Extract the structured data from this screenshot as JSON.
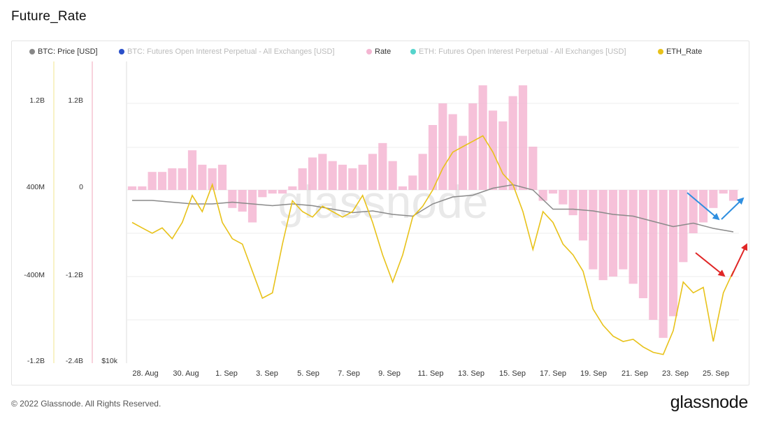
{
  "page": {
    "title": "Future_Rate",
    "copyright": "© 2022 Glassnode. All Rights Reserved.",
    "brand": "glassnode",
    "watermark": "glassnode"
  },
  "legend": [
    {
      "label": "BTC: Price [USD]",
      "color": "#888888",
      "dim": false
    },
    {
      "label": "BTC: Futures Open Interest Perpetual - All Exchanges [USD]",
      "color": "#2a4fc9",
      "dim": true
    },
    {
      "label": "Rate",
      "color": "#f4b6d2",
      "dim": false
    },
    {
      "label": "ETH: Futures Open Interest Perpetual - All Exchanges [USD]",
      "color": "#55d4cc",
      "dim": true
    },
    {
      "label": "ETH_Rate",
      "color": "#e8c21a",
      "dim": false
    }
  ],
  "axes": {
    "eth_axis_ticks": [
      "1.2B",
      "400M",
      "-400M",
      "-1.2B"
    ],
    "rate_axis_ticks": [
      "1.2B",
      "0",
      "-1.2B",
      "-2.4B"
    ],
    "price_axis_ticks": [
      "$10k"
    ],
    "x_ticks": [
      "28. Aug",
      "30. Aug",
      "1. Sep",
      "3. Sep",
      "5. Sep",
      "7. Sep",
      "9. Sep",
      "11. Sep",
      "13. Sep",
      "15. Sep",
      "17. Sep",
      "19. Sep",
      "21. Sep",
      "23. Sep",
      "25. Sep"
    ],
    "eth_axis_color": "#f3e9a0",
    "rate_axis_color": "#f3b6c6"
  },
  "chart_data": {
    "type": "line",
    "x_range": [
      "27. Aug",
      "26. Sep"
    ],
    "rate_ylim": [
      -2.4,
      1.6
    ],
    "eth_rate_ylim": [
      -1.2,
      1.6
    ],
    "series": [
      {
        "name": "Rate",
        "kind": "bar",
        "unit": "B",
        "color": "#f4b6d2",
        "t": [
          0,
          0.5,
          1,
          1.5,
          2,
          2.5,
          3,
          3.5,
          4,
          4.5,
          5,
          5.5,
          6,
          6.5,
          7,
          7.5,
          8,
          8.5,
          9,
          9.5,
          10,
          10.5,
          11,
          11.5,
          12,
          12.5,
          13,
          13.5,
          14,
          14.5,
          15,
          15.5,
          16,
          16.5,
          17,
          17.5,
          18,
          18.5,
          19,
          19.5,
          20,
          20.5,
          21,
          21.5,
          22,
          22.5,
          23,
          23.5,
          24,
          24.5,
          25,
          25.5,
          26,
          26.5,
          27,
          27.5,
          28,
          28.5,
          29,
          29.5,
          30
        ],
        "v": [
          0.05,
          0.05,
          0.25,
          0.25,
          0.3,
          0.3,
          0.55,
          0.35,
          0.3,
          0.35,
          -0.25,
          -0.3,
          -0.45,
          -0.1,
          -0.05,
          -0.05,
          0.05,
          0.3,
          0.45,
          0.5,
          0.4,
          0.35,
          0.3,
          0.35,
          0.5,
          0.65,
          0.4,
          0.05,
          0.2,
          0.5,
          0.9,
          1.2,
          1.05,
          0.75,
          1.2,
          1.45,
          1.1,
          0.95,
          1.3,
          1.45,
          0.6,
          -0.15,
          -0.05,
          -0.2,
          -0.35,
          -0.7,
          -1.1,
          -1.25,
          -1.2,
          -1.1,
          -1.3,
          -1.5,
          -1.8,
          -2.05,
          -1.75,
          -1.0,
          -0.6,
          -0.45,
          -0.25,
          -0.05,
          -0.15
        ]
      },
      {
        "name": "ETH_Rate",
        "kind": "line",
        "unit": "B",
        "color": "#e8c21a",
        "t": [
          0,
          0.5,
          1,
          1.5,
          2,
          2.5,
          3,
          3.5,
          4,
          4.5,
          5,
          5.5,
          6,
          6.5,
          7,
          7.5,
          8,
          8.5,
          9,
          9.5,
          10,
          10.5,
          11,
          11.5,
          12,
          12.5,
          13,
          13.5,
          14,
          14.5,
          15,
          15.5,
          16,
          16.5,
          17,
          17.5,
          18,
          18.5,
          19,
          19.5,
          20,
          20.5,
          21,
          21.5,
          22,
          22.5,
          23,
          23.5,
          24,
          24.5,
          25,
          25.5,
          26,
          26.5,
          27,
          27.5,
          28,
          28.5,
          29,
          29.5,
          30
        ],
        "v": [
          0.1,
          0.05,
          0.0,
          0.05,
          -0.05,
          0.1,
          0.35,
          0.2,
          0.45,
          0.1,
          -0.05,
          -0.1,
          -0.35,
          -0.6,
          -0.55,
          -0.1,
          0.3,
          0.2,
          0.15,
          0.25,
          0.2,
          0.15,
          0.2,
          0.35,
          0.1,
          -0.2,
          -0.45,
          -0.2,
          0.15,
          0.25,
          0.4,
          0.6,
          0.75,
          0.8,
          0.85,
          0.9,
          0.75,
          0.55,
          0.45,
          0.2,
          -0.15,
          0.2,
          0.1,
          -0.1,
          -0.2,
          -0.35,
          -0.7,
          -0.85,
          -0.95,
          -1.0,
          -0.98,
          -1.05,
          -1.1,
          -1.12,
          -0.9,
          -0.45,
          -0.55,
          -0.5,
          -1.0,
          -0.55,
          -0.35
        ]
      },
      {
        "name": "BTC: Price [USD]",
        "kind": "line",
        "unit": "USD",
        "color": "#8a8a8a",
        "t": [
          0,
          1,
          2,
          3,
          4,
          5,
          6,
          7,
          8,
          9,
          10,
          11,
          12,
          13,
          14,
          15,
          16,
          17,
          18,
          19,
          20,
          21,
          22,
          23,
          24,
          25,
          26,
          27,
          28,
          29,
          30
        ],
        "v": [
          20200,
          20200,
          20150,
          20100,
          20100,
          20150,
          20100,
          20050,
          20100,
          20050,
          19950,
          19850,
          19900,
          19800,
          19750,
          20100,
          20300,
          20350,
          20550,
          20650,
          20500,
          19950,
          19950,
          19900,
          19800,
          19750,
          19600,
          19450,
          19550,
          19400,
          19300
        ]
      }
    ],
    "annotations": [
      {
        "kind": "arrow-pair",
        "color": "#2f8fe0",
        "near": "23. Sep – 26. Sep",
        "series": "Rate"
      },
      {
        "kind": "arrow-pair",
        "color": "#e02626",
        "near": "23. Sep – 26. Sep",
        "series": "ETH_Rate"
      }
    ]
  }
}
